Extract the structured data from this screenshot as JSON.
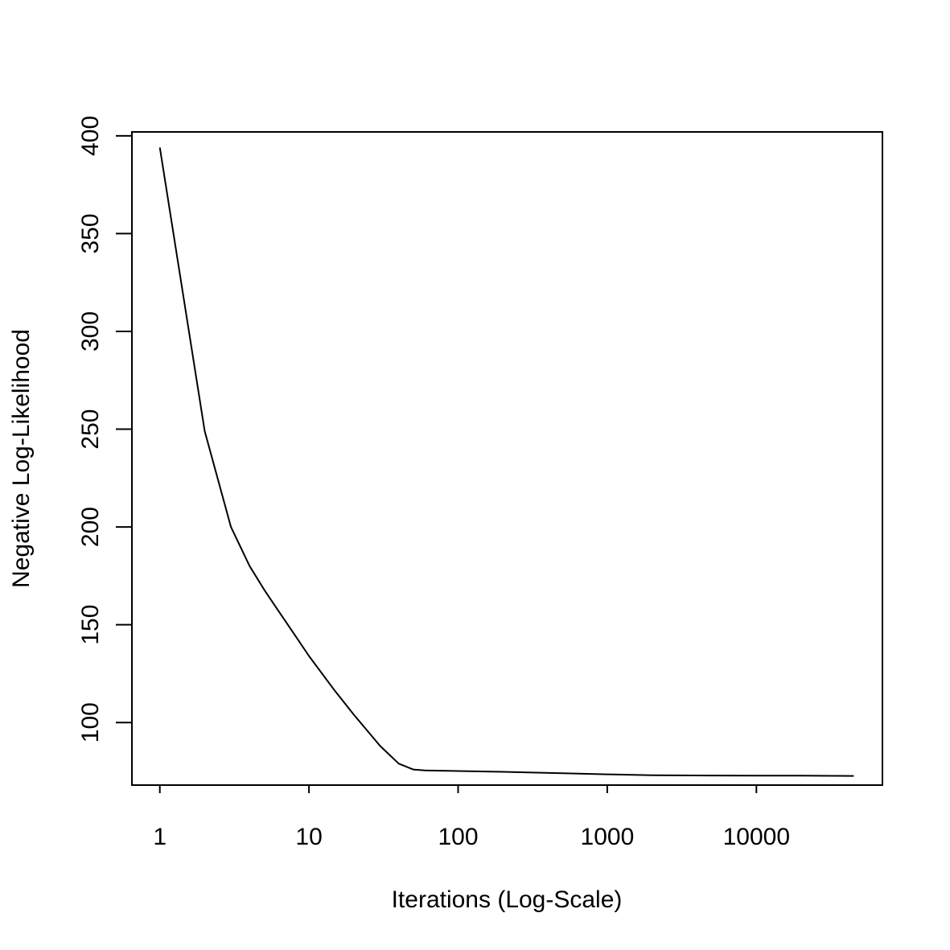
{
  "chart_data": {
    "type": "line",
    "title": "",
    "xlabel": "Iterations (Log-Scale)",
    "ylabel": "Negative Log-Likelihood",
    "x_scale": "log10",
    "xlim": [
      0.65,
      70000
    ],
    "ylim": [
      68,
      402
    ],
    "x_ticks": [
      1,
      10,
      100,
      1000,
      10000
    ],
    "x_tick_labels": [
      "1",
      "10",
      "100",
      "1000",
      "10000"
    ],
    "y_ticks": [
      100,
      150,
      200,
      250,
      300,
      350,
      400
    ],
    "y_tick_labels": [
      "100",
      "150",
      "200",
      "250",
      "300",
      "350",
      "400"
    ],
    "grid": false,
    "series": [
      {
        "color": "#000000",
        "x": [
          1,
          2,
          3,
          4,
          5,
          6,
          8,
          10,
          15,
          20,
          30,
          40,
          50,
          60,
          100,
          200,
          500,
          1000,
          2000,
          5000,
          10000,
          20000,
          45000
        ],
        "y": [
          394,
          249,
          200,
          180,
          168,
          159,
          145,
          134,
          116,
          104,
          88,
          79,
          76,
          75.5,
          75.2,
          74.8,
          74.1,
          73.5,
          73.0,
          72.9,
          72.8,
          72.8,
          72.7
        ]
      }
    ]
  }
}
